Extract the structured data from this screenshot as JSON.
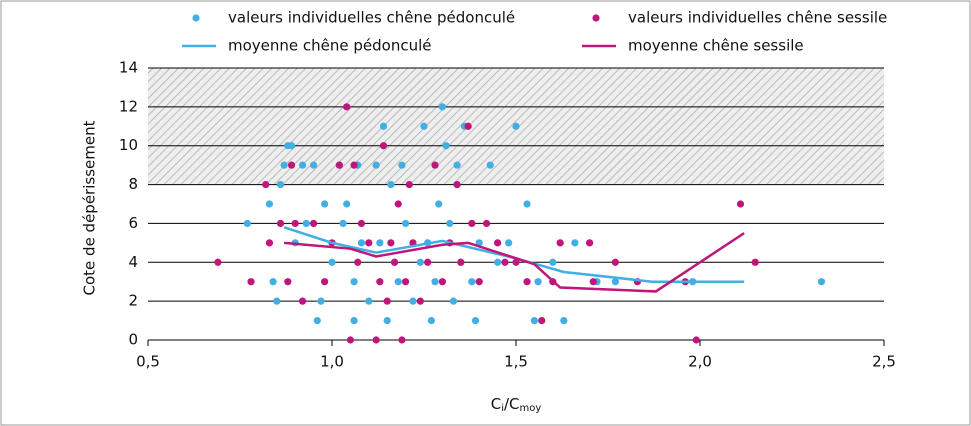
{
  "chart_data": {
    "type": "scatter",
    "ylabel": "Cote de dépérissement",
    "xlabel": [
      "C",
      "i",
      "/C",
      "moy"
    ],
    "xlim": [
      0.5,
      2.5
    ],
    "xticks": [
      {
        "value": 0.5,
        "label": "0,5"
      },
      {
        "value": 1.0,
        "label": "1,0"
      },
      {
        "value": 1.5,
        "label": "1,5"
      },
      {
        "value": 2.0,
        "label": "2,0"
      },
      {
        "value": 2.5,
        "label": "2,5"
      }
    ],
    "ylim": [
      0,
      14
    ],
    "yticks": [
      0,
      2,
      4,
      6,
      8,
      10,
      12,
      14
    ],
    "grid": true,
    "hatched_range": [
      8,
      14
    ],
    "legend": "top",
    "series": [
      {
        "name": "valeurs individuelles chêne pédonculé",
        "kind": "scatter",
        "color": "#41aee4",
        "x": [
          0.77,
          0.83,
          0.84,
          0.85,
          0.86,
          0.87,
          0.88,
          0.89,
          0.9,
          0.92,
          0.93,
          0.95,
          0.96,
          0.97,
          0.98,
          1.0,
          1.02,
          1.03,
          1.04,
          1.06,
          1.06,
          1.07,
          1.08,
          1.1,
          1.12,
          1.13,
          1.14,
          1.15,
          1.16,
          1.17,
          1.18,
          1.19,
          1.2,
          1.22,
          1.24,
          1.25,
          1.26,
          1.27,
          1.28,
          1.29,
          1.3,
          1.31,
          1.32,
          1.33,
          1.34,
          1.35,
          1.36,
          1.38,
          1.39,
          1.4,
          1.43,
          1.45,
          1.48,
          1.5,
          1.53,
          1.55,
          1.56,
          1.6,
          1.63,
          1.66,
          1.72,
          1.77,
          1.98,
          2.33
        ],
        "values": [
          6,
          7,
          3,
          2,
          8,
          9,
          10,
          10,
          5,
          9,
          6,
          9,
          1,
          2,
          7,
          4,
          9,
          6,
          7,
          3,
          1,
          9,
          5,
          2,
          9,
          5,
          11,
          1,
          8,
          4,
          3,
          9,
          6,
          2,
          4,
          11,
          5,
          1,
          3,
          7,
          12,
          10,
          6,
          2,
          9,
          4,
          11,
          3,
          1,
          5,
          9,
          4,
          5,
          11,
          7,
          1,
          3,
          4,
          1,
          5,
          3,
          3,
          3,
          3
        ]
      },
      {
        "name": "valeurs individuelles chêne sessile",
        "kind": "scatter",
        "color": "#c0157a",
        "x": [
          0.69,
          0.78,
          0.82,
          0.83,
          0.86,
          0.88,
          0.89,
          0.9,
          0.92,
          0.95,
          0.98,
          1.0,
          1.02,
          1.04,
          1.05,
          1.06,
          1.07,
          1.08,
          1.1,
          1.12,
          1.13,
          1.14,
          1.15,
          1.16,
          1.17,
          1.18,
          1.19,
          1.2,
          1.21,
          1.22,
          1.24,
          1.26,
          1.28,
          1.3,
          1.32,
          1.34,
          1.35,
          1.37,
          1.38,
          1.4,
          1.42,
          1.45,
          1.47,
          1.5,
          1.53,
          1.57,
          1.6,
          1.62,
          1.7,
          1.71,
          1.77,
          1.83,
          1.96,
          1.99,
          2.11,
          2.15
        ],
        "values": [
          4,
          3,
          8,
          5,
          6,
          3,
          9,
          6,
          2,
          6,
          3,
          5,
          9,
          12,
          0,
          9,
          4,
          6,
          5,
          0,
          3,
          10,
          2,
          5,
          4,
          7,
          0,
          3,
          8,
          5,
          2,
          4,
          9,
          3,
          5,
          8,
          4,
          11,
          6,
          3,
          6,
          5,
          4,
          4,
          3,
          1,
          3,
          5,
          5,
          3,
          4,
          3,
          3,
          0,
          7,
          4
        ]
      },
      {
        "name": "moyenne chêne pédonculé",
        "kind": "line",
        "color": "#41aee4",
        "x": [
          0.87,
          1.0,
          1.12,
          1.3,
          1.5,
          1.63,
          1.87,
          2.12
        ],
        "values": [
          5.8,
          5.0,
          4.5,
          5.1,
          4.2,
          3.5,
          3.0,
          3.0
        ]
      },
      {
        "name": "moyenne chêne sessile",
        "kind": "line",
        "color": "#c0157a",
        "x": [
          0.87,
          1.05,
          1.12,
          1.3,
          1.37,
          1.55,
          1.62,
          1.88,
          2.12
        ],
        "values": [
          5.0,
          4.7,
          4.3,
          4.9,
          5.0,
          3.9,
          2.7,
          2.5,
          5.5
        ]
      }
    ]
  }
}
